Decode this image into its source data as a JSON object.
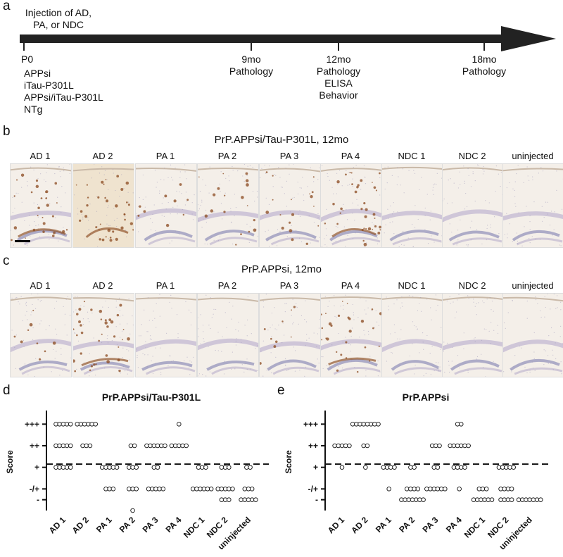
{
  "panel_labels": [
    "a",
    "b",
    "c",
    "d",
    "e"
  ],
  "timeline": {
    "injection": [
      "Injection of AD,",
      "PA, or NDC"
    ],
    "p0_label": "P0",
    "groups": [
      "APPsi",
      "iTau-P301L",
      "APPsi/iTau-P301L",
      "NTg"
    ],
    "milestones": [
      {
        "time": "9mo",
        "lines": [
          "Pathology"
        ]
      },
      {
        "time": "12mo",
        "lines": [
          "Pathology",
          "ELISA",
          "Behavior"
        ]
      },
      {
        "time": "18mo",
        "lines": [
          "Pathology"
        ]
      }
    ]
  },
  "histology": {
    "row_b_title": "PrP.APPsi/Tau-P301L, 12mo",
    "row_c_title": "PrP.APPsi, 12mo",
    "columns": [
      "AD 1",
      "AD 2",
      "PA 1",
      "PA 2",
      "PA 3",
      "PA 4",
      "NDC 1",
      "NDC 2",
      "uninjected"
    ]
  },
  "chart_data": [
    {
      "type": "scatter",
      "title": "PrP.APPsi/Tau-P301L",
      "ylabel": "Score",
      "categories": [
        "AD 1",
        "AD 2",
        "PA 1",
        "PA 2",
        "PA 3",
        "PA 4",
        "NDC 1",
        "NDC 2",
        "uninjected"
      ],
      "y_tick_labels": [
        "-",
        "-/+",
        "+",
        "++",
        "+++"
      ],
      "ylim": [
        0,
        4.5
      ],
      "threshold_line": 2.15,
      "series": [
        {
          "values": {
            "4": 5,
            "3": 5,
            "2": 5
          }
        },
        {
          "values": {
            "4": 6,
            "3": 3
          }
        },
        {
          "values": {
            "2": 5,
            "1": 3
          }
        },
        {
          "values": {
            "3": 2,
            "2": 3,
            "1": 3,
            "0": 1
          }
        },
        {
          "values": {
            "3": 6,
            "2": 2,
            "1": 5
          }
        },
        {
          "values": {
            "4": 1,
            "3": 5
          }
        },
        {
          "values": {
            "2": 3,
            "1": 6
          }
        },
        {
          "values": {
            "2": 3,
            "1": 5,
            "0.5": 3
          }
        },
        {
          "values": {
            "2": 2,
            "1": 3,
            "0.5": 5
          }
        }
      ]
    },
    {
      "type": "scatter",
      "title": "PrP.APPsi",
      "ylabel": "Score",
      "categories": [
        "AD 1",
        "AD 2",
        "PA 1",
        "PA 2",
        "PA 3",
        "PA 4",
        "NDC 1",
        "NDC 2",
        "uninjected"
      ],
      "y_tick_labels": [
        "-",
        "-/+",
        "+",
        "++",
        "+++"
      ],
      "ylim": [
        0,
        4.5
      ],
      "threshold_line": 2.15,
      "series": [
        {
          "values": {
            "3": 5,
            "2": 1
          }
        },
        {
          "values": {
            "4": 8,
            "3": 2,
            "2": 1
          }
        },
        {
          "values": {
            "2": 4,
            "1": 1
          }
        },
        {
          "values": {
            "2": 2,
            "1": 4,
            "0.5": 7
          }
        },
        {
          "values": {
            "3": 3,
            "2": 2,
            "1": 6
          }
        },
        {
          "values": {
            "4": 2,
            "3": 6,
            "2": 4,
            "1": 1
          }
        },
        {
          "values": {
            "1": 3,
            "0.5": 6
          }
        },
        {
          "values": {
            "2": 5,
            "1": 4,
            "0.5": 4
          }
        },
        {
          "values": {
            "0.5": 7
          }
        }
      ]
    }
  ],
  "colors": {
    "axis": "#111111",
    "tissue": "#f4efe9",
    "stain": "#8b4a1f",
    "nuclei": "#8f8fb8"
  }
}
